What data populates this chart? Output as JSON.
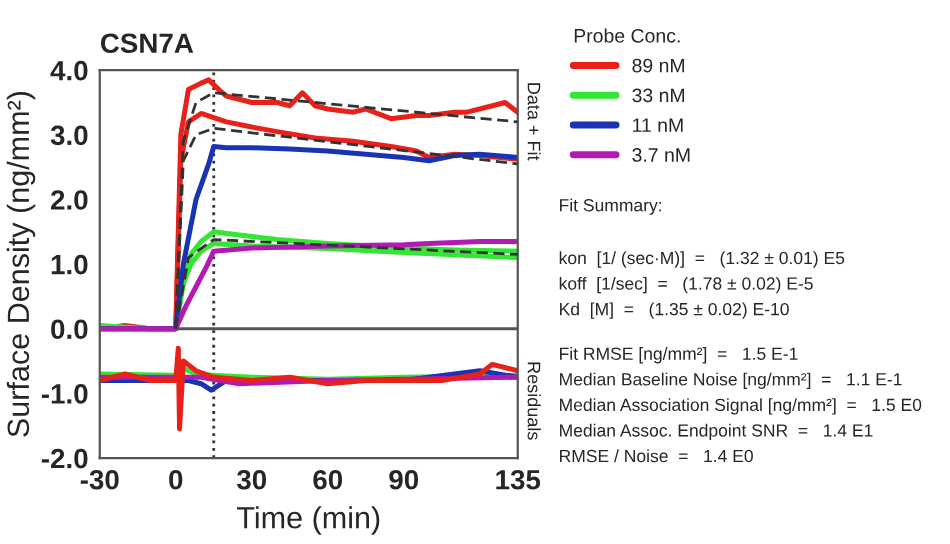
{
  "chart_data": {
    "type": "line",
    "title": "CSN7A",
    "xlabel": "Time (min)",
    "ylabel": "Surface Density (ng/mm²)",
    "legend_title": "Probe Conc.",
    "legend": "right",
    "grid": false,
    "marker": "none",
    "xlim": [
      -30,
      135
    ],
    "xticks": [
      -30,
      0,
      30,
      60,
      90,
      135
    ],
    "ylim": [
      -2,
      4
    ],
    "yticks": [
      {
        "value": -2,
        "label": "-2.0"
      },
      {
        "value": -1,
        "label": "-1.0"
      },
      {
        "value": 0,
        "label": "0.0"
      },
      {
        "value": 1,
        "label": "1.0"
      },
      {
        "value": 2,
        "label": "2.0"
      },
      {
        "value": 3,
        "label": "3.0"
      },
      {
        "value": 4,
        "label": "4.0"
      }
    ],
    "ref_lines": [
      {
        "axis": "x",
        "value": 15,
        "color": "#333333",
        "line_style": "dotted"
      },
      {
        "axis": "y",
        "value": 0,
        "color": "#555555",
        "line_style": "solid"
      }
    ],
    "series": [
      {
        "name": "89 nM",
        "color": "#e8211b",
        "x": [
          -30,
          -20,
          -10,
          0,
          2,
          5,
          10,
          13,
          17,
          20,
          30,
          40,
          45,
          50,
          55,
          60,
          70,
          75,
          85,
          95,
          100,
          110,
          115,
          125,
          130,
          135
        ],
        "values": [
          0.0,
          0.05,
          0.0,
          0.0,
          3.0,
          3.7,
          3.8,
          3.85,
          3.7,
          3.6,
          3.5,
          3.5,
          3.45,
          3.65,
          3.45,
          3.4,
          3.35,
          3.4,
          3.25,
          3.3,
          3.3,
          3.35,
          3.35,
          3.45,
          3.5,
          3.35
        ]
      },
      {
        "color": "#e8211b",
        "x": [
          -30,
          -10,
          0,
          2,
          5,
          10,
          20,
          30,
          40,
          55,
          70,
          85,
          95,
          100,
          110,
          120,
          135
        ],
        "values": [
          0.0,
          0.0,
          0.0,
          2.6,
          3.2,
          3.33,
          3.2,
          3.12,
          3.05,
          2.95,
          2.9,
          2.82,
          2.75,
          2.65,
          2.7,
          2.68,
          2.62
        ]
      },
      {
        "name": "33 nM",
        "color": "#33e633",
        "x": [
          -30,
          -10,
          0,
          3,
          6,
          10,
          15,
          25,
          40,
          60,
          90,
          110,
          135
        ],
        "values": [
          0.05,
          0.0,
          0.0,
          0.8,
          1.15,
          1.35,
          1.5,
          1.45,
          1.38,
          1.32,
          1.25,
          1.22,
          1.2
        ]
      },
      {
        "color": "#33e633",
        "x": [
          -30,
          0,
          3,
          6,
          10,
          15,
          30,
          60,
          90,
          135
        ],
        "values": [
          0.0,
          0.0,
          0.7,
          1.0,
          1.2,
          1.32,
          1.28,
          1.24,
          1.18,
          1.1
        ]
      },
      {
        "name": "11 nM",
        "color": "#1a33b3",
        "x": [
          -30,
          -10,
          0,
          3,
          8,
          13,
          15,
          20,
          30,
          45,
          60,
          75,
          90,
          100,
          110,
          120,
          135
        ],
        "values": [
          0.0,
          0.0,
          0.0,
          1.0,
          2.0,
          2.55,
          2.82,
          2.8,
          2.8,
          2.78,
          2.75,
          2.7,
          2.65,
          2.6,
          2.68,
          2.7,
          2.65
        ]
      },
      {
        "name": "3.7 nM",
        "color": "#b31ab3",
        "x": [
          -30,
          -10,
          0,
          4,
          8,
          12,
          15,
          30,
          60,
          90,
          100,
          120,
          135
        ],
        "values": [
          0.0,
          0.0,
          0.0,
          0.35,
          0.65,
          0.95,
          1.2,
          1.25,
          1.28,
          1.3,
          1.32,
          1.35,
          1.35
        ]
      },
      {
        "color": "#333333",
        "line_style": "dashed",
        "x": [
          0,
          3,
          8,
          15,
          135
        ],
        "values": [
          0.0,
          2.9,
          3.5,
          3.65,
          3.2
        ]
      },
      {
        "color": "#333333",
        "line_style": "dashed",
        "x": [
          0,
          3,
          8,
          15,
          135
        ],
        "values": [
          0.0,
          2.6,
          3.0,
          3.1,
          2.55
        ]
      },
      {
        "color": "#333333",
        "line_style": "dashed",
        "x": [
          0,
          5,
          15,
          135
        ],
        "values": [
          0.0,
          1.1,
          1.38,
          1.15
        ]
      },
      {
        "color": "#33e633",
        "x": [
          -30,
          0,
          2,
          8,
          15,
          30,
          60,
          90,
          135
        ],
        "values": [
          -0.7,
          -0.72,
          -0.6,
          -0.7,
          -0.72,
          -0.75,
          -0.78,
          -0.75,
          -0.72
        ]
      },
      {
        "color": "#1a33b3",
        "x": [
          -30,
          0,
          5,
          10,
          14,
          20,
          60,
          90,
          120,
          135
        ],
        "values": [
          -0.8,
          -0.8,
          -0.8,
          -0.85,
          -0.95,
          -0.8,
          -0.8,
          -0.8,
          -0.65,
          -0.75
        ]
      },
      {
        "color": "#b31ab3",
        "x": [
          -30,
          0,
          10,
          25,
          60,
          90,
          135
        ],
        "values": [
          -0.75,
          -0.75,
          -0.75,
          -0.85,
          -0.8,
          -0.78,
          -0.75
        ]
      },
      {
        "color": "#e8211b",
        "x": [
          -30,
          -20,
          -10,
          0,
          1,
          1.5,
          3,
          8,
          15,
          30,
          45,
          60,
          75,
          90,
          105,
          120,
          125,
          135
        ],
        "values": [
          -0.8,
          -0.7,
          -0.8,
          -0.8,
          -0.3,
          -1.55,
          -0.5,
          -0.65,
          -0.75,
          -0.8,
          -0.75,
          -0.85,
          -0.8,
          -0.8,
          -0.8,
          -0.7,
          -0.55,
          -0.65
        ]
      }
    ],
    "annotations": [
      "Data + Fit",
      "Residuals",
      "Fit Summary:",
      "kon  [1/ (sec·M)]  =   (1.32 ± 0.01) E5",
      "koff  [1/sec]  =   (1.78 ± 0.02) E-5",
      "Kd  [M]  =   (1.35 ± 0.02) E-10",
      "Fit RMSE [ng/mm²]  =   1.5 E-1",
      "Median Baseline Noise [ng/mm²]  =   1.1 E-1",
      "Median Association Signal [ng/mm²]  =   1.5 E0",
      "Median Assoc. Endpoint SNR  =   1.4 E1",
      "RMSE / Noise  =   1.4 E0"
    ]
  }
}
